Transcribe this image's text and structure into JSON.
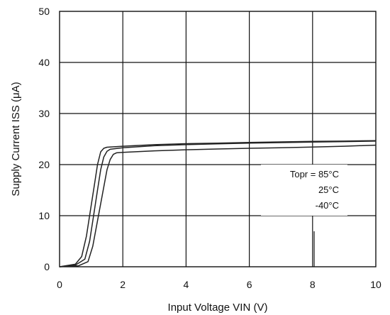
{
  "chart_data": {
    "type": "line",
    "xlabel": "Input Voltage VIN (V)",
    "ylabel": "Supply Current ISS (μA)",
    "xlim": [
      0,
      10
    ],
    "ylim": [
      0,
      50
    ],
    "xticks": [
      "0",
      "2",
      "4",
      "6",
      "8",
      "10"
    ],
    "yticks": [
      "0",
      "10",
      "20",
      "30",
      "40",
      "50"
    ],
    "grid": true,
    "legend_position": "right",
    "legend_lines": [
      "Topr = 85°C",
      "25°C",
      "-40°C"
    ],
    "series": [
      {
        "x": [
          0,
          0.5,
          0.7,
          0.85,
          1.0,
          1.1,
          1.2,
          1.3,
          1.4,
          1.5,
          2,
          3,
          4,
          5,
          6,
          7,
          8,
          9,
          10
        ],
        "y": [
          0,
          0.5,
          2,
          6,
          12,
          16,
          20,
          22.5,
          23.2,
          23.4,
          23.6,
          23.9,
          24.1,
          24.2,
          24.35,
          24.45,
          24.55,
          24.6,
          24.7
        ]
      },
      {
        "x": [
          0,
          0.5,
          0.8,
          0.95,
          1.1,
          1.2,
          1.3,
          1.4,
          1.5,
          1.6,
          2,
          3,
          4,
          5,
          6,
          7,
          8,
          9,
          10
        ],
        "y": [
          0,
          0.3,
          1.5,
          5,
          11,
          15,
          19,
          21.5,
          22.6,
          23.0,
          23.3,
          23.7,
          23.9,
          24.05,
          24.2,
          24.3,
          24.4,
          24.5,
          24.6
        ]
      },
      {
        "x": [
          0,
          0.6,
          0.9,
          1.05,
          1.2,
          1.35,
          1.5,
          1.6,
          1.7,
          1.8,
          2,
          3,
          4,
          5,
          6,
          7,
          8,
          9,
          10
        ],
        "y": [
          0,
          0.2,
          1.0,
          4,
          9,
          14,
          19,
          21,
          22,
          22.3,
          22.4,
          22.7,
          22.9,
          23.05,
          23.2,
          23.3,
          23.45,
          23.6,
          23.8
        ]
      }
    ]
  }
}
